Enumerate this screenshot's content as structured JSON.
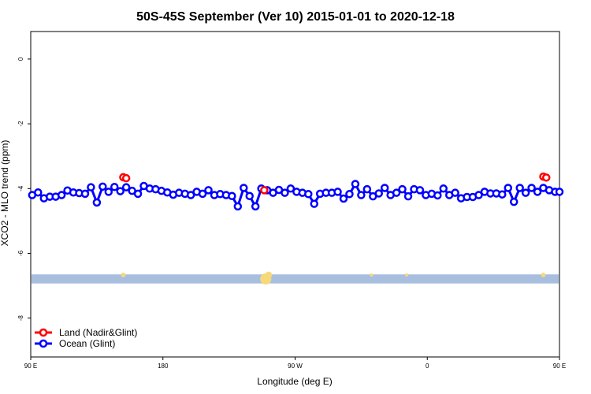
{
  "chart_data": {
    "type": "line",
    "title": "50S-45S September (Ver 10)   2015-01-01 to 2020-12-18",
    "xlabel": "Longitude (deg E)",
    "ylabel": "XCO2 - MLO trend (ppm)",
    "xlim": [
      90,
      450
    ],
    "ylim": [
      -9.2,
      0.85
    ],
    "x_ticks": [
      {
        "value": 90,
        "label": "90 E"
      },
      {
        "value": 180,
        "label": "180"
      },
      {
        "value": 270,
        "label": "90 W"
      },
      {
        "value": 360,
        "label": "0"
      },
      {
        "value": 450,
        "label": "90 E"
      },
      {
        "value": 540,
        "label": "180"
      }
    ],
    "y_ticks": [
      {
        "value": 0,
        "label": "0"
      },
      {
        "value": -2,
        "label": "-2"
      },
      {
        "value": -4,
        "label": "-4"
      },
      {
        "value": -6,
        "label": "-6"
      },
      {
        "value": -8,
        "label": "-8"
      }
    ],
    "colors": {
      "land": "#ff0000",
      "ocean": "#0000ff",
      "band": "#a7bedf",
      "band_land": "#f7d97a"
    },
    "coverage_band": {
      "y_top": -6.65,
      "y_bottom": -6.93
    },
    "land_markers": [
      {
        "x": 153,
        "size": 1
      },
      {
        "x": 250,
        "size": 4
      },
      {
        "x": 252,
        "size": 2
      },
      {
        "x": 322,
        "size": 0.4
      },
      {
        "x": 346,
        "size": 0.4
      },
      {
        "x": 439,
        "size": 1
      }
    ],
    "series": [
      {
        "name": "Land (Nadir&Glint)",
        "color": "#ff0000",
        "points": [
          {
            "x": 153,
            "y": -3.65
          },
          {
            "x": 155,
            "y": -3.68
          },
          {
            "x": 249,
            "y": -4.05
          },
          {
            "x": 439,
            "y": -3.63
          },
          {
            "x": 441,
            "y": -3.66
          }
        ],
        "segments": [
          [
            0,
            1
          ],
          [
            3,
            4
          ]
        ]
      },
      {
        "name": "Ocean (Glint)",
        "color": "#0000ff",
        "x": [
          91,
          95,
          99,
          103,
          107,
          111,
          115,
          119,
          123,
          127,
          131,
          135,
          139,
          143,
          147,
          151,
          155,
          159,
          163,
          167,
          171,
          175,
          179,
          183,
          187,
          191,
          195,
          199,
          203,
          207,
          211,
          215,
          219,
          223,
          227,
          231,
          235,
          239,
          243,
          247,
          251,
          255,
          259,
          263,
          267,
          271,
          275,
          279,
          283,
          287,
          291,
          295,
          299,
          303,
          307,
          311,
          315,
          319,
          323,
          327,
          331,
          335,
          339,
          343,
          347,
          351,
          355,
          359,
          363,
          367,
          371,
          375,
          379,
          383,
          387,
          391,
          395,
          399,
          403,
          407,
          411,
          415,
          419,
          423,
          427,
          431,
          435,
          439,
          443,
          447,
          450
        ],
        "y": [
          -4.2,
          -4.12,
          -4.3,
          -4.25,
          -4.25,
          -4.2,
          -4.06,
          -4.12,
          -4.14,
          -4.16,
          -3.96,
          -4.43,
          -3.94,
          -4.1,
          -3.95,
          -4.08,
          -3.96,
          -4.07,
          -4.16,
          -3.92,
          -4.0,
          -4.02,
          -4.07,
          -4.12,
          -4.19,
          -4.13,
          -4.16,
          -4.2,
          -4.1,
          -4.16,
          -4.05,
          -4.2,
          -4.17,
          -4.2,
          -4.23,
          -4.55,
          -3.98,
          -4.23,
          -4.55,
          -4.0,
          -4.05,
          -4.13,
          -4.04,
          -4.13,
          -4.0,
          -4.1,
          -4.13,
          -4.17,
          -4.47,
          -4.16,
          -4.13,
          -4.13,
          -4.1,
          -4.31,
          -4.17,
          -3.86,
          -4.2,
          -4.02,
          -4.24,
          -4.15,
          -3.98,
          -4.2,
          -4.13,
          -4.02,
          -4.24,
          -4.02,
          -4.05,
          -4.2,
          -4.16,
          -4.21,
          -4.0,
          -4.2,
          -4.13,
          -4.3,
          -4.26,
          -4.26,
          -4.2,
          -4.1,
          -4.15,
          -4.15,
          -4.18,
          -3.98,
          -4.41,
          -3.98,
          -4.13,
          -3.98,
          -4.1,
          -3.98,
          -4.05,
          -4.1,
          -4.1
        ]
      }
    ],
    "legend": {
      "position": "bottom-left",
      "entries": [
        {
          "label": "Land (Nadir&Glint)",
          "color": "#ff0000"
        },
        {
          "label": "Ocean (Glint)",
          "color": "#0000ff"
        }
      ]
    },
    "grid": false
  }
}
